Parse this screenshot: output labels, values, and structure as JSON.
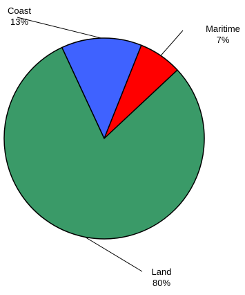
{
  "chart_data": {
    "type": "pie",
    "title": "",
    "slices": [
      {
        "label": "Coast",
        "value": 13,
        "value_label": "13%",
        "color": "#3f62ff"
      },
      {
        "label": "Maritime",
        "value": 7,
        "value_label": "7%",
        "color": "#ff0000"
      },
      {
        "label": "Land",
        "value": 80,
        "value_label": "80%",
        "color": "#3a9a68"
      }
    ],
    "slice_outline_color": "#000000",
    "leader_line_color": "#000000",
    "start_angle_deg": -25
  }
}
